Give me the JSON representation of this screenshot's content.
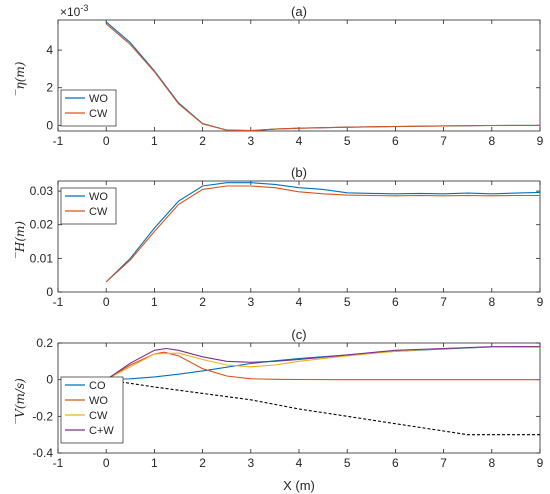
{
  "chart_data": [
    {
      "type": "line",
      "title": "(a)",
      "ylabel": "̅η(m)",
      "xlabel": "",
      "exponent_label": "×10-3",
      "xlim": [
        -1,
        9
      ],
      "ylim": [
        -0.3,
        5.6
      ],
      "xticks": [
        -1,
        0,
        1,
        2,
        3,
        4,
        5,
        6,
        7,
        8,
        9
      ],
      "yticks": [
        0,
        2,
        4
      ],
      "grid": false,
      "legend_position": "bottom-left",
      "series": [
        {
          "name": "WO",
          "color": "#0072BD",
          "dashed": false,
          "x": [
            0,
            0.5,
            1,
            1.5,
            2,
            2.5,
            3,
            3.5,
            4,
            5,
            6,
            7,
            8,
            9
          ],
          "y": [
            5.5,
            4.4,
            2.9,
            1.2,
            0.1,
            -0.25,
            -0.28,
            -0.2,
            -0.15,
            -0.1,
            -0.06,
            -0.03,
            -0.01,
            0.0
          ]
        },
        {
          "name": "CW",
          "color": "#D95319",
          "dashed": false,
          "x": [
            0,
            0.5,
            1,
            1.5,
            2,
            2.5,
            3,
            3.5,
            4,
            5,
            6,
            7,
            8,
            9
          ],
          "y": [
            5.4,
            4.3,
            2.85,
            1.15,
            0.08,
            -0.25,
            -0.28,
            -0.2,
            -0.15,
            -0.1,
            -0.06,
            -0.03,
            -0.01,
            0.0
          ]
        }
      ]
    },
    {
      "type": "line",
      "title": "(b)",
      "ylabel": "̅H(m)",
      "xlabel": "",
      "xlim": [
        -1,
        9
      ],
      "ylim": [
        0,
        0.033
      ],
      "xticks": [
        -1,
        0,
        1,
        2,
        3,
        4,
        5,
        6,
        7,
        8,
        9
      ],
      "yticks": [
        0,
        0.01,
        0.02,
        0.03
      ],
      "grid": false,
      "legend_position": "top-left",
      "series": [
        {
          "name": "WO",
          "color": "#0072BD",
          "dashed": false,
          "x": [
            0,
            0.5,
            1,
            1.5,
            2,
            2.5,
            3,
            3.5,
            4,
            4.5,
            5,
            5.5,
            6,
            6.5,
            7,
            7.5,
            8,
            8.5,
            9
          ],
          "y": [
            0.003,
            0.01,
            0.019,
            0.027,
            0.0315,
            0.0325,
            0.0325,
            0.032,
            0.031,
            0.0305,
            0.0295,
            0.0293,
            0.0292,
            0.0293,
            0.0292,
            0.0294,
            0.0292,
            0.0294,
            0.0296
          ]
        },
        {
          "name": "CW",
          "color": "#D95319",
          "dashed": false,
          "x": [
            0,
            0.5,
            1,
            1.5,
            2,
            2.5,
            3,
            3.5,
            4,
            4.5,
            5,
            5.5,
            6,
            6.5,
            7,
            7.5,
            8,
            8.5,
            9
          ],
          "y": [
            0.003,
            0.0095,
            0.018,
            0.026,
            0.0305,
            0.0315,
            0.0315,
            0.031,
            0.0298,
            0.0292,
            0.0288,
            0.0287,
            0.0286,
            0.0287,
            0.0286,
            0.0287,
            0.0286,
            0.0287,
            0.0287
          ]
        }
      ]
    },
    {
      "type": "line",
      "title": "(c)",
      "ylabel": "̅V(m/s)",
      "xlabel": "X (m)",
      "xlim": [
        -1,
        9
      ],
      "ylim": [
        -0.4,
        0.2
      ],
      "xticks": [
        -1,
        0,
        1,
        2,
        3,
        4,
        5,
        6,
        7,
        8,
        9
      ],
      "yticks": [
        -0.4,
        -0.2,
        0,
        0.2
      ],
      "grid": false,
      "legend_position": "bottom-left",
      "series": [
        {
          "name": "CO",
          "color": "#0072BD",
          "dashed": false,
          "x": [
            0,
            0.5,
            1,
            1.5,
            2,
            2.5,
            3,
            3.5,
            4,
            5,
            6,
            7,
            8,
            9
          ],
          "y": [
            0,
            0.005,
            0.015,
            0.03,
            0.048,
            0.068,
            0.088,
            0.103,
            0.115,
            0.135,
            0.155,
            0.168,
            0.178,
            0.18
          ]
        },
        {
          "name": "WO",
          "color": "#D95319",
          "dashed": false,
          "x": [
            0,
            0.5,
            1,
            1.2,
            1.5,
            2,
            2.5,
            3,
            3.5,
            4,
            5,
            6,
            7,
            8,
            9
          ],
          "y": [
            0,
            0.08,
            0.14,
            0.15,
            0.13,
            0.06,
            0.02,
            0.005,
            0.002,
            0.001,
            0,
            0,
            0,
            0,
            0
          ]
        },
        {
          "name": "CW",
          "color": "#EDB120",
          "dashed": false,
          "x": [
            0,
            0.5,
            1,
            1.5,
            2,
            2.5,
            3,
            3.5,
            4,
            5,
            6,
            7,
            8,
            9
          ],
          "y": [
            0,
            0.07,
            0.14,
            0.145,
            0.11,
            0.08,
            0.07,
            0.08,
            0.1,
            0.13,
            0.155,
            0.17,
            0.178,
            0.18
          ]
        },
        {
          "name": "C+W",
          "color": "#7E2F8E",
          "dashed": false,
          "x": [
            0,
            0.5,
            1,
            1.25,
            1.5,
            2,
            2.5,
            3,
            3.5,
            4,
            5,
            6,
            7,
            8,
            9
          ],
          "y": [
            0,
            0.09,
            0.16,
            0.17,
            0.16,
            0.125,
            0.1,
            0.095,
            0.1,
            0.11,
            0.135,
            0.16,
            0.17,
            0.18,
            0.18
          ]
        },
        {
          "name": "",
          "color": "#000000",
          "dashed": true,
          "x": [
            0,
            1,
            2,
            3,
            4,
            5,
            6,
            7,
            7.5,
            9
          ],
          "y": [
            0,
            -0.04,
            -0.075,
            -0.11,
            -0.16,
            -0.2,
            -0.24,
            -0.28,
            -0.3,
            -0.3
          ]
        }
      ]
    }
  ]
}
